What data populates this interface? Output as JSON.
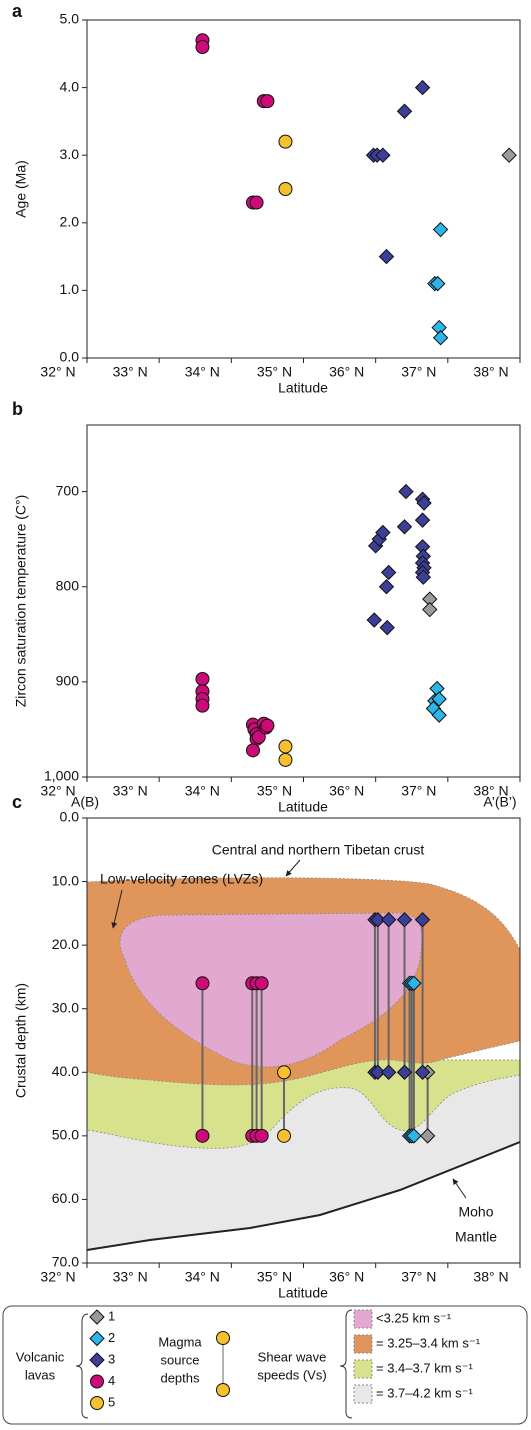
{
  "chart_data": [
    {
      "type": "scatter",
      "panel": "a",
      "xlabel": "Latitude",
      "ylabel": "Age (Ma)",
      "xlim": [
        32,
        38
      ],
      "xticks": [
        {
          "value": 32,
          "label": "32° N"
        },
        {
          "value": 33,
          "label": "33° N"
        },
        {
          "value": 34,
          "label": "34° N"
        },
        {
          "value": 35,
          "label": "35° N"
        },
        {
          "value": 36,
          "label": "36° N"
        },
        {
          "value": 37,
          "label": "37° N"
        },
        {
          "value": 38,
          "label": "38° N"
        }
      ],
      "ylim": [
        0,
        5
      ],
      "yticks": [
        {
          "value": 0,
          "label": "0.0"
        },
        {
          "value": 1,
          "label": "1.0"
        },
        {
          "value": 2,
          "label": "2.0"
        },
        {
          "value": 3,
          "label": "3.0"
        },
        {
          "value": 4,
          "label": "4.0"
        },
        {
          "value": 5,
          "label": "5.0"
        }
      ],
      "series": [
        {
          "color": "#9a9a9a",
          "marker": "diamond",
          "x": [
            37.85
          ],
          "values": [
            3.0
          ]
        },
        {
          "color": "#2bb5e8",
          "marker": "diamond",
          "x": [
            36.9,
            36.82,
            36.86,
            36.88,
            36.9
          ],
          "values": [
            1.9,
            1.1,
            1.1,
            0.45,
            0.3
          ]
        },
        {
          "color": "#3b3f98",
          "marker": "diamond",
          "x": [
            36.65,
            36.4,
            35.97,
            36.02,
            36.1,
            36.15
          ],
          "values": [
            4.0,
            3.65,
            3.0,
            3.0,
            3.0,
            1.5
          ]
        },
        {
          "color": "#cc0b78",
          "marker": "circle",
          "x": [
            33.6,
            33.6,
            34.45,
            34.5,
            34.3,
            34.35
          ],
          "values": [
            4.7,
            4.6,
            3.8,
            3.8,
            2.3,
            2.3
          ]
        },
        {
          "color": "#f6c12e",
          "marker": "circle",
          "x": [
            34.75,
            34.75
          ],
          "values": [
            3.2,
            2.5
          ]
        }
      ]
    },
    {
      "type": "scatter",
      "panel": "b",
      "xlabel": "Latitude",
      "ylabel": "Zircon saturation temperature (C°)",
      "xlim": [
        32,
        38
      ],
      "xticks": [
        {
          "value": 32,
          "label": "32° N"
        },
        {
          "value": 33,
          "label": "33° N"
        },
        {
          "value": 34,
          "label": "34° N"
        },
        {
          "value": 35,
          "label": "35° N"
        },
        {
          "value": 36,
          "label": "36° N"
        },
        {
          "value": 37,
          "label": "37° N"
        },
        {
          "value": 38,
          "label": "38° N"
        }
      ],
      "ylim": [
        630,
        1000
      ],
      "invert": true,
      "yticks": [
        700,
        800,
        900,
        {
          "value": 1000,
          "label": "1,000"
        }
      ],
      "series": [
        {
          "color": "#9a9a9a",
          "marker": "diamond",
          "x": [
            36.75,
            36.75
          ],
          "values": [
            813,
            824
          ]
        },
        {
          "color": "#2bb5e8",
          "marker": "diamond",
          "x": [
            36.85,
            36.82,
            36.88,
            36.8,
            36.88
          ],
          "values": [
            907,
            920,
            918,
            928,
            935
          ]
        },
        {
          "color": "#3b3f98",
          "marker": "diamond",
          "x": [
            35.98,
            36.16,
            36.0,
            36.05,
            36.1,
            36.18,
            36.15,
            36.42,
            36.4,
            36.65,
            36.67,
            36.65,
            36.65,
            36.66,
            36.65,
            36.67,
            36.65,
            36.66
          ],
          "values": [
            835,
            843,
            757,
            750,
            743,
            785,
            800,
            700,
            737,
            708,
            712,
            730,
            758,
            768,
            775,
            780,
            785,
            790
          ]
        },
        {
          "color": "#cc0b78",
          "marker": "circle",
          "x": [
            33.6,
            33.6,
            33.6,
            33.6,
            34.3,
            34.32,
            34.35,
            34.35,
            34.38,
            34.3,
            34.45,
            34.48,
            34.5
          ],
          "values": [
            897,
            910,
            918,
            925,
            945,
            950,
            955,
            960,
            958,
            972,
            944,
            948,
            946
          ]
        },
        {
          "color": "#f6c12e",
          "marker": "circle",
          "x": [
            34.75,
            34.75
          ],
          "values": [
            968,
            982
          ]
        }
      ]
    },
    {
      "type": "dumbbell",
      "panel": "c",
      "xlabel": "Latitude",
      "ylabel": "Crustal depth (km)",
      "xlim": [
        32,
        38
      ],
      "xticks": [
        {
          "value": 32,
          "label": "32° N"
        },
        {
          "value": 33,
          "label": "33° N"
        },
        {
          "value": 34,
          "label": "34° N"
        },
        {
          "value": 35,
          "label": "35° N"
        },
        {
          "value": 36,
          "label": "36° N"
        },
        {
          "value": 37,
          "label": "37° N"
        },
        {
          "value": 38,
          "label": "38° N"
        }
      ],
      "ylim": [
        0,
        70
      ],
      "invert": true,
      "yticks": [
        {
          "value": 0,
          "label": "0.0"
        },
        {
          "value": 10,
          "label": "10.0"
        },
        {
          "value": 20,
          "label": "20.0"
        },
        {
          "value": 30,
          "label": "30.0"
        },
        {
          "value": 40,
          "label": "40.0"
        },
        {
          "value": 50,
          "label": "50.0"
        },
        {
          "value": 60,
          "label": "60.0"
        },
        {
          "value": 70,
          "label": "70.0"
        }
      ],
      "connector_color": "#666666",
      "series": [
        {
          "name": "1",
          "color": "#9a9a9a",
          "marker": "diamond",
          "x": [
            36.72
          ],
          "shallow": [
            40
          ],
          "deep": [
            50
          ]
        },
        {
          "name": "2",
          "color": "#2bb5e8",
          "marker": "diamond",
          "x": [
            36.47,
            36.5,
            36.53
          ],
          "shallow": [
            26,
            26,
            26
          ],
          "deep": [
            50,
            50,
            50
          ]
        },
        {
          "name": "3",
          "color": "#3b3f98",
          "marker": "diamond",
          "x": [
            35.99,
            36.03,
            36.18,
            36.4,
            36.65
          ],
          "shallow": [
            16,
            16,
            16,
            16,
            16
          ],
          "deep": [
            40,
            40,
            40,
            40,
            40
          ]
        },
        {
          "name": "4",
          "color": "#cc0b78",
          "marker": "circle",
          "x": [
            33.6,
            34.29,
            34.35,
            34.42
          ],
          "shallow": [
            26,
            26,
            26,
            26
          ],
          "deep": [
            50,
            50,
            50,
            50
          ]
        },
        {
          "name": "5",
          "color": "#f6c12e",
          "marker": "circle",
          "x": [
            34.73
          ],
          "shallow": [
            40
          ],
          "deep": [
            50
          ]
        }
      ],
      "layers": [
        {
          "label": "<3.25 km s⁻¹",
          "color": "#e2a8cf"
        },
        {
          "label": "= 3.25–3.4 km s⁻¹",
          "color": "#e0955b"
        },
        {
          "label": "= 3.4–3.7 km s⁻¹",
          "color": "#d8e28c"
        },
        {
          "label": "= 3.7–4.2 km s⁻¹",
          "color": "#e8e8e8"
        }
      ],
      "annotations": {
        "left_end": "A(B)",
        "right_end": "A’(B’)",
        "crust": "Central and northern Tibetan crust",
        "lvz": "Low-velocity zones (LVZs)",
        "moho": "Moho",
        "mantle": "Mantle"
      },
      "legend": {
        "lavas": [
          "Volcanic",
          "lavas"
        ],
        "depths": [
          "Magma",
          "source",
          "depths"
        ],
        "speeds": [
          "Shear wave",
          "speeds (Vs)"
        ]
      }
    }
  ]
}
